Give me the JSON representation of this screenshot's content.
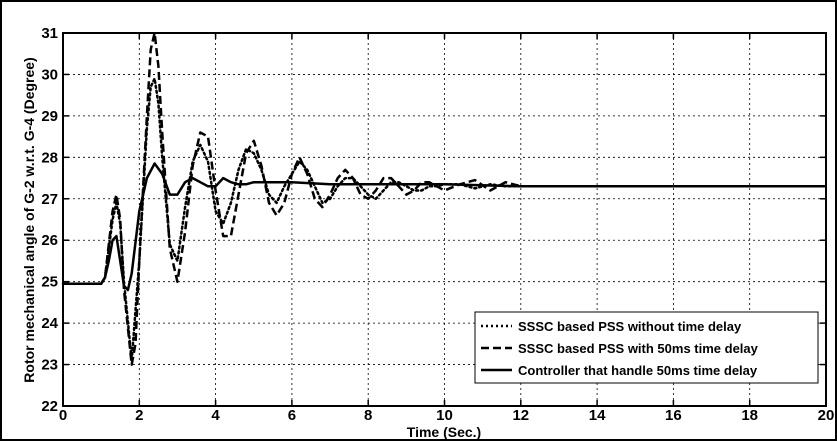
{
  "chart_data": {
    "type": "line",
    "title": "",
    "xlabel": "Time (Sec.)",
    "ylabel": "Rotor mechanical angle of G-2 w.r.t. G-4 (Degree)",
    "xlim": [
      0,
      20
    ],
    "ylim": [
      22,
      31
    ],
    "xticks": [
      "0",
      "2",
      "4",
      "6",
      "8",
      "10",
      "12",
      "14",
      "16",
      "18",
      "20"
    ],
    "yticks": [
      "22",
      "23",
      "24",
      "25",
      "26",
      "27",
      "28",
      "29",
      "30",
      "31"
    ],
    "grid": true,
    "legend_position": "bottom-right",
    "series": [
      {
        "name": "SSSC based PSS without time delay",
        "style": "dotted",
        "x": [
          0,
          1,
          1.1,
          1.2,
          1.3,
          1.4,
          1.5,
          1.6,
          1.8,
          2.0,
          2.2,
          2.3,
          2.4,
          2.5,
          2.6,
          2.8,
          3.0,
          3.2,
          3.4,
          3.6,
          3.8,
          4.0,
          4.2,
          4.4,
          4.6,
          4.8,
          5.0,
          5.2,
          5.4,
          5.6,
          5.8,
          6.0,
          6.2,
          6.4,
          6.6,
          6.8,
          7.0,
          7.2,
          7.4,
          7.6,
          7.8,
          8.0,
          8.2,
          8.4,
          8.6,
          8.8,
          9.0,
          9.2,
          9.4,
          9.6,
          9.8,
          10.0,
          10.4,
          10.8,
          11.2,
          11.6,
          12.0,
          12.5,
          13.0,
          14,
          15,
          16,
          17,
          18,
          19,
          20
        ],
        "y": [
          24.95,
          24.95,
          25.1,
          25.8,
          26.5,
          26.9,
          26.4,
          25.0,
          23.1,
          25.5,
          28.7,
          29.7,
          29.9,
          29.3,
          28.0,
          25.9,
          25.5,
          26.8,
          27.9,
          28.3,
          27.9,
          26.7,
          26.4,
          26.9,
          27.7,
          28.2,
          28.1,
          27.7,
          27.1,
          26.9,
          27.3,
          27.6,
          27.9,
          27.7,
          27.3,
          26.9,
          27.0,
          27.3,
          27.5,
          27.5,
          27.3,
          27.1,
          27.0,
          27.2,
          27.4,
          27.4,
          27.3,
          27.2,
          27.2,
          27.3,
          27.3,
          27.35,
          27.35,
          27.25,
          27.35,
          27.3,
          27.3,
          27.3,
          27.3,
          27.3,
          27.3,
          27.3,
          27.3,
          27.3,
          27.3,
          27.3
        ]
      },
      {
        "name": "SSSC based PSS with 50ms time delay",
        "style": "dashed",
        "x": [
          0,
          1,
          1.1,
          1.2,
          1.3,
          1.4,
          1.5,
          1.6,
          1.8,
          1.9,
          2.0,
          2.2,
          2.3,
          2.4,
          2.5,
          2.6,
          2.8,
          3.0,
          3.2,
          3.4,
          3.6,
          3.8,
          4.0,
          4.2,
          4.4,
          4.6,
          4.8,
          5.0,
          5.2,
          5.4,
          5.6,
          5.8,
          6.0,
          6.2,
          6.4,
          6.6,
          6.8,
          7.0,
          7.2,
          7.4,
          7.6,
          7.8,
          8.0,
          8.2,
          8.4,
          8.6,
          8.8,
          9.0,
          9.2,
          9.4,
          9.6,
          9.8,
          10.0,
          10.4,
          10.8,
          11.2,
          11.6,
          12.0,
          12.5,
          13.0,
          14,
          15,
          16,
          17,
          18,
          19,
          20
        ],
        "y": [
          24.95,
          24.95,
          25.1,
          25.9,
          26.7,
          27.1,
          26.5,
          24.8,
          23.0,
          23.5,
          25.5,
          29.0,
          30.6,
          31.0,
          30.2,
          28.6,
          25.8,
          25.0,
          26.2,
          27.8,
          28.6,
          28.5,
          27.2,
          26.1,
          26.1,
          27.1,
          28.1,
          28.4,
          27.8,
          26.9,
          26.6,
          26.9,
          27.6,
          28.0,
          27.6,
          27.0,
          26.8,
          27.1,
          27.5,
          27.7,
          27.5,
          27.1,
          27.0,
          27.2,
          27.5,
          27.5,
          27.3,
          27.1,
          27.2,
          27.4,
          27.4,
          27.3,
          27.2,
          27.35,
          27.45,
          27.2,
          27.4,
          27.3,
          27.3,
          27.3,
          27.3,
          27.3,
          27.3,
          27.3,
          27.3,
          27.3,
          27.3
        ]
      },
      {
        "name": "Controller that handle 50ms time delay",
        "style": "solid",
        "x": [
          0,
          1,
          1.1,
          1.2,
          1.3,
          1.4,
          1.5,
          1.6,
          1.7,
          1.8,
          2.0,
          2.2,
          2.4,
          2.6,
          2.8,
          3.0,
          3.2,
          3.4,
          3.6,
          3.8,
          4.0,
          4.2,
          4.4,
          4.6,
          4.8,
          5.0,
          5.5,
          6.0,
          7,
          8,
          9,
          10,
          12,
          14,
          16,
          18,
          20
        ],
        "y": [
          24.95,
          24.95,
          25.1,
          25.5,
          26.0,
          26.1,
          25.5,
          24.9,
          24.8,
          25.2,
          26.7,
          27.5,
          27.85,
          27.6,
          27.1,
          27.1,
          27.4,
          27.5,
          27.4,
          27.3,
          27.3,
          27.5,
          27.4,
          27.35,
          27.35,
          27.4,
          27.4,
          27.4,
          27.35,
          27.35,
          27.35,
          27.35,
          27.3,
          27.3,
          27.3,
          27.3,
          27.3
        ]
      }
    ]
  }
}
